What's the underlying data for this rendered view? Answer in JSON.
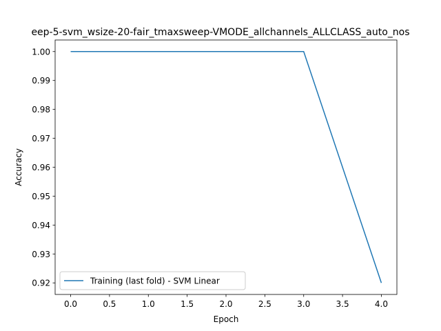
{
  "chart_data": {
    "type": "line",
    "title": "eep-5-svm_wsize-20-fair_tmaxsweep-VMODE_allchannels_ALLCLASS_auto_nos",
    "xlabel": "Epoch",
    "ylabel": "Accuracy",
    "xlim": [
      -0.2,
      4.2
    ],
    "ylim": [
      0.916,
      1.004
    ],
    "x_ticks": [
      0.0,
      0.5,
      1.0,
      1.5,
      2.0,
      2.5,
      3.0,
      3.5,
      4.0
    ],
    "x_tick_labels": [
      "0.0",
      "0.5",
      "1.0",
      "1.5",
      "2.0",
      "2.5",
      "3.0",
      "3.5",
      "4.0"
    ],
    "y_ticks": [
      0.92,
      0.93,
      0.94,
      0.95,
      0.96,
      0.97,
      0.98,
      0.99,
      1.0
    ],
    "y_tick_labels": [
      "0.92",
      "0.93",
      "0.94",
      "0.95",
      "0.96",
      "0.97",
      "0.98",
      "0.99",
      "1.00"
    ],
    "grid": false,
    "legend_position": "lower-left",
    "series": [
      {
        "name": "Training (last fold) - SVM Linear",
        "color": "#1f77b4",
        "x": [
          0,
          1,
          2,
          3,
          4
        ],
        "y": [
          1.0,
          1.0,
          1.0,
          1.0,
          0.92
        ]
      }
    ]
  }
}
